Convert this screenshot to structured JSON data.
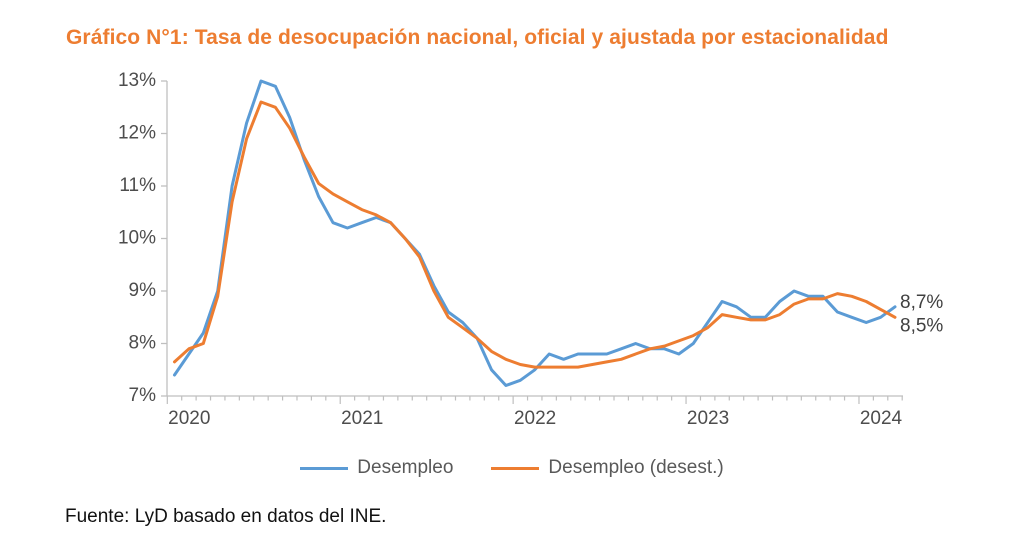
{
  "title": "Gráfico N°1: Tasa de desocupación nacional, oficial y ajustada por estacionalidad",
  "source": "Fuente: LyD basado en datos del INE.",
  "colors": {
    "title": "#ED7D31",
    "axis_line": "#BFBFBF",
    "axis_text": "#4D4D4D",
    "end_label_text": "#404040"
  },
  "chart_data": {
    "type": "line",
    "title": "Tasa de desocupación nacional, oficial y ajustada por estacionalidad",
    "x_unit": "months (moving quarters)",
    "x_tick_labels": [
      "2020",
      "2021",
      "2022",
      "2023",
      "2024"
    ],
    "points_per_year": 12,
    "ylim": [
      7,
      13
    ],
    "y_ticks": [
      "7%",
      "8%",
      "9%",
      "10%",
      "11%",
      "12%",
      "13%"
    ],
    "grid": false,
    "legend_position": "bottom",
    "series": [
      {
        "name": "Desempleo",
        "color": "#5B9BD5",
        "end_label": "8,7%",
        "values": [
          7.4,
          7.8,
          8.2,
          9.0,
          11.0,
          12.2,
          13.0,
          12.9,
          12.3,
          11.5,
          10.8,
          10.3,
          10.2,
          10.3,
          10.4,
          10.3,
          10.0,
          9.7,
          9.1,
          8.6,
          8.4,
          8.1,
          7.5,
          7.2,
          7.3,
          7.5,
          7.8,
          7.7,
          7.8,
          7.8,
          7.8,
          7.9,
          8.0,
          7.9,
          7.9,
          7.8,
          8.0,
          8.4,
          8.8,
          8.7,
          8.5,
          8.5,
          8.8,
          9.0,
          8.9,
          8.9,
          8.6,
          8.5,
          8.4,
          8.5,
          8.7
        ]
      },
      {
        "name": "Desempleo (desest.)",
        "color": "#ED7D31",
        "end_label": "8,5%",
        "values": [
          7.65,
          7.9,
          8.0,
          8.9,
          10.7,
          11.9,
          12.6,
          12.5,
          12.1,
          11.55,
          11.05,
          10.85,
          10.7,
          10.55,
          10.45,
          10.3,
          10.0,
          9.65,
          9.0,
          8.5,
          8.3,
          8.1,
          7.85,
          7.7,
          7.6,
          7.55,
          7.55,
          7.55,
          7.55,
          7.6,
          7.65,
          7.7,
          7.8,
          7.9,
          7.95,
          8.05,
          8.15,
          8.3,
          8.55,
          8.5,
          8.45,
          8.45,
          8.55,
          8.75,
          8.85,
          8.85,
          8.95,
          8.9,
          8.8,
          8.65,
          8.5
        ]
      }
    ]
  }
}
